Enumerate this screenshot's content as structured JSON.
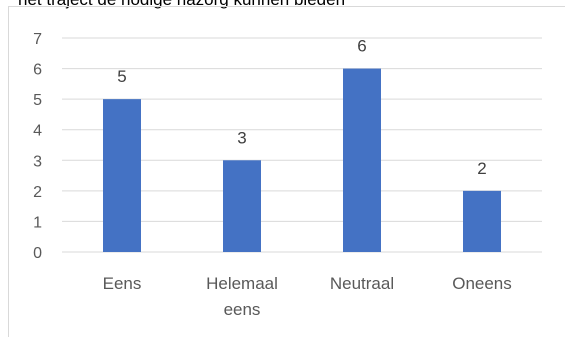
{
  "header_text": "het traject de nodige nazorg kunnen bieden",
  "chart_data": {
    "type": "bar",
    "categories": [
      [
        "Eens"
      ],
      [
        "Helemaal",
        "eens"
      ],
      [
        "Neutraal"
      ],
      [
        "Oneens"
      ]
    ],
    "values": [
      5,
      3,
      6,
      2
    ],
    "y_ticks": [
      "0",
      "1",
      "2",
      "3",
      "4",
      "5",
      "6",
      "7"
    ],
    "ylim": [
      0,
      7
    ],
    "grid": true,
    "data_labels": [
      "5",
      "3",
      "6",
      "2"
    ],
    "colors": {
      "bar": "#4472C4",
      "grid": "#d9d9d9"
    }
  }
}
